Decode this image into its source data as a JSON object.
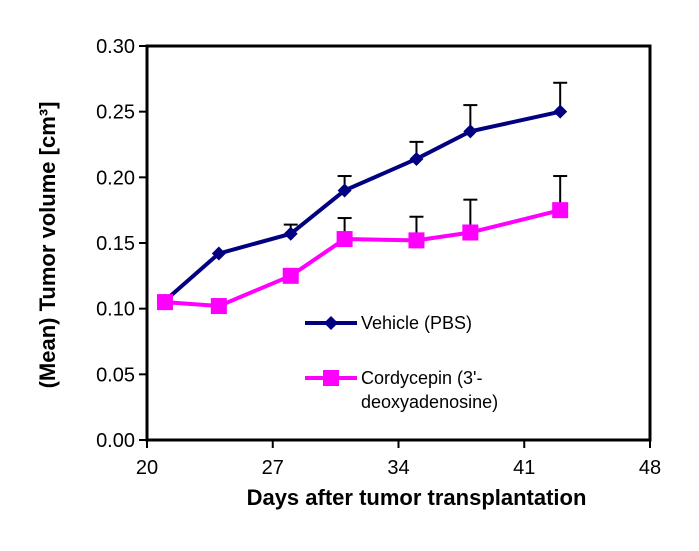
{
  "chart_data": {
    "type": "line",
    "title": "",
    "xlabel": "Days after tumor transplantation",
    "ylabel": "(Mean) Tumor volume [cm³]",
    "xlim": [
      20,
      48
    ],
    "ylim": [
      0,
      0.3
    ],
    "xticks": [
      20,
      27,
      34,
      41,
      48
    ],
    "yticks": [
      0.0,
      0.05,
      0.1,
      0.15,
      0.2,
      0.25,
      0.3
    ],
    "xtick_labels": [
      "20",
      "27",
      "34",
      "41",
      "48"
    ],
    "ytick_labels": [
      "0.00",
      "0.05",
      "0.10",
      "0.15",
      "0.20",
      "0.25",
      "0.30"
    ],
    "grid": false,
    "legend_position": "center-right",
    "series": [
      {
        "name": "Vehicle (PBS)",
        "marker": "diamond",
        "color": "#000080",
        "x": [
          21,
          24,
          28,
          31,
          35,
          38,
          43
        ],
        "y": [
          0.106,
          0.142,
          0.157,
          0.19,
          0.214,
          0.235,
          0.25
        ],
        "error": [
          0.0,
          0.0,
          0.007,
          0.011,
          0.013,
          0.02,
          0.022
        ]
      },
      {
        "name": "Cordycepin (3'-\ndeoxyadenosine)",
        "legend_lines": [
          "Cordycepin (3'-",
          "deoxyadenosine)"
        ],
        "marker": "square",
        "color": "#ff00ff",
        "x": [
          21,
          24,
          28,
          31,
          35,
          38,
          43
        ],
        "y": [
          0.105,
          0.102,
          0.125,
          0.153,
          0.152,
          0.158,
          0.175
        ],
        "error": [
          0.0,
          0.0,
          0.0,
          0.016,
          0.018,
          0.025,
          0.026
        ]
      }
    ]
  }
}
